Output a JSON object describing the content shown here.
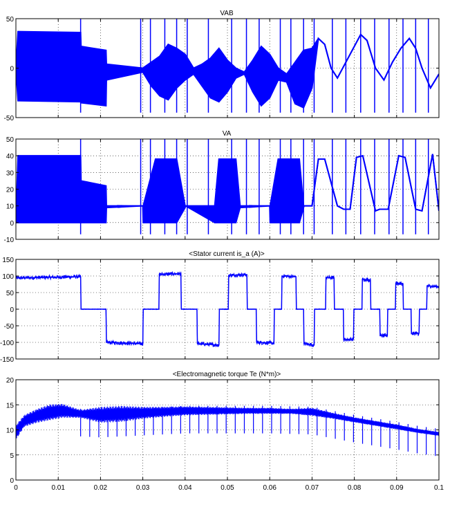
{
  "figure": {
    "line_color": "#0000ff",
    "grid": true,
    "grid_style": "dotted"
  },
  "chart_data": [
    {
      "type": "line",
      "title": "VAB",
      "xlabel": "",
      "ylabel": "",
      "xlim": [
        0,
        0.1
      ],
      "ylim": [
        -50,
        50
      ],
      "yticks": [
        -50,
        0,
        50
      ],
      "xticks": [
        0,
        0.01,
        0.02,
        0.03,
        0.04,
        0.05,
        0.06,
        0.07,
        0.08,
        0.09,
        0.1
      ],
      "show_xtick_labels": false,
      "series": [
        {
          "style": "pwm-chopped",
          "description_x": [
            0,
            0.0005,
            0.0153,
            0.0154,
            0.0213,
            0.0214,
            0.03,
            0.032,
            0.034,
            0.036,
            0.038,
            0.04,
            0.042,
            0.044,
            0.046,
            0.048,
            0.05,
            0.052,
            0.054,
            0.056,
            0.058,
            0.06,
            0.062,
            0.064,
            0.066,
            0.068,
            0.07,
            0.0715,
            0.073,
            0.0745,
            0.076,
            0.078,
            0.08,
            0.0815,
            0.083,
            0.085,
            0.087,
            0.089,
            0.091,
            0.093,
            0.0945,
            0.096,
            0.098,
            0.1
          ],
          "envelope_upper": [
            0,
            37,
            36,
            22,
            18,
            4,
            0,
            6,
            12,
            24,
            20,
            14,
            0,
            4,
            10,
            20,
            8,
            0,
            -4,
            8,
            22,
            14,
            0,
            -6,
            6,
            18,
            20,
            30,
            24,
            0,
            -10,
            6,
            22,
            34,
            28,
            0,
            -12,
            6,
            20,
            30,
            20,
            0,
            -20,
            -6
          ],
          "envelope_lower": [
            0,
            -33,
            -34,
            -35,
            -38,
            -12,
            -4,
            -18,
            -28,
            -32,
            -20,
            -12,
            -6,
            -18,
            -30,
            -34,
            -24,
            -10,
            -6,
            -24,
            -38,
            -30,
            -12,
            -14,
            -36,
            -40,
            -20,
            30,
            24,
            0,
            -10,
            6,
            22,
            34,
            28,
            0,
            -12,
            6,
            20,
            30,
            20,
            0,
            -20,
            -6
          ]
        }
      ]
    },
    {
      "type": "line",
      "title": "VA",
      "xlabel": "",
      "ylabel": "",
      "xlim": [
        0,
        0.1
      ],
      "ylim": [
        -10,
        50
      ],
      "yticks": [
        -10,
        0,
        10,
        20,
        30,
        40,
        50
      ],
      "xticks": [
        0,
        0.01,
        0.02,
        0.03,
        0.04,
        0.05,
        0.06,
        0.07,
        0.08,
        0.09,
        0.1
      ],
      "show_xtick_labels": false,
      "series": [
        {
          "style": "pwm-chopped",
          "description_x": [
            0,
            0.0005,
            0.0153,
            0.0154,
            0.0213,
            0.0214,
            0.03,
            0.0301,
            0.033,
            0.038,
            0.04,
            0.0401,
            0.047,
            0.048,
            0.052,
            0.053,
            0.06,
            0.0601,
            0.062,
            0.067,
            0.068,
            0.0681,
            0.07,
            0.0715,
            0.073,
            0.076,
            0.0775,
            0.079,
            0.0805,
            0.082,
            0.085,
            0.086,
            0.088,
            0.0905,
            0.092,
            0.0945,
            0.096,
            0.0985,
            0.1
          ],
          "envelope_upper": [
            0,
            40,
            40,
            25,
            22,
            10,
            10,
            10,
            38,
            38,
            10,
            10,
            10,
            38,
            38,
            10,
            10,
            10,
            38,
            38,
            10,
            10,
            10,
            38,
            38,
            10,
            8,
            8,
            39,
            40,
            7,
            8,
            8,
            40,
            39,
            8,
            7,
            41,
            7
          ],
          "envelope_lower": [
            0,
            0,
            0,
            0,
            0,
            9,
            10,
            0,
            0,
            0,
            9,
            10,
            0,
            0,
            0,
            9,
            10,
            0,
            0,
            0,
            9,
            10,
            10,
            38,
            38,
            10,
            8,
            8,
            39,
            40,
            7,
            8,
            8,
            40,
            39,
            8,
            7,
            41,
            7
          ]
        }
      ]
    },
    {
      "type": "line",
      "title": "<Stator current is_a (A)>",
      "xlabel": "",
      "ylabel": "",
      "xlim": [
        0,
        0.1
      ],
      "ylim": [
        -150,
        150
      ],
      "yticks": [
        -150,
        -100,
        -50,
        0,
        50,
        100,
        150
      ],
      "xticks": [
        0,
        0.01,
        0.02,
        0.03,
        0.04,
        0.05,
        0.06,
        0.07,
        0.08,
        0.09,
        0.1
      ],
      "show_xtick_labels": false,
      "series": [
        {
          "style": "square-steps",
          "x": [
            0,
            0.0001,
            0.0153,
            0.0154,
            0.0213,
            0.0214,
            0.03,
            0.0301,
            0.0338,
            0.0339,
            0.039,
            0.0391,
            0.0428,
            0.0429,
            0.048,
            0.0481,
            0.0502,
            0.0503,
            0.0546,
            0.0547,
            0.0568,
            0.0569,
            0.061,
            0.0611,
            0.0628,
            0.0629,
            0.0662,
            0.0663,
            0.068,
            0.0681,
            0.0705,
            0.0706,
            0.0732,
            0.0733,
            0.0752,
            0.0753,
            0.0774,
            0.0775,
            0.0798,
            0.0799,
            0.0818,
            0.0819,
            0.0838,
            0.0839,
            0.086,
            0.0861,
            0.0878,
            0.0879,
            0.0897,
            0.0898,
            0.0915,
            0.0916,
            0.0934,
            0.0935,
            0.0953,
            0.0954,
            0.0971,
            0.0972,
            0.1
          ],
          "y": [
            92,
            94,
            98,
            0,
            0,
            -100,
            -104,
            0,
            0,
            105,
            107,
            0,
            0,
            -104,
            -108,
            0,
            0,
            102,
            104,
            0,
            0,
            -100,
            -102,
            0,
            0,
            100,
            98,
            0,
            0,
            -104,
            -108,
            0,
            0,
            96,
            94,
            0,
            0,
            -92,
            -90,
            0,
            0,
            90,
            88,
            0,
            0,
            -80,
            -80,
            0,
            0,
            78,
            76,
            0,
            0,
            -74,
            -72,
            0,
            0,
            70,
            68
          ]
        }
      ]
    },
    {
      "type": "line",
      "title": "<Electromagnetic torque Te (N*m)>",
      "xlabel": "",
      "ylabel": "",
      "xlim": [
        0,
        0.1
      ],
      "ylim": [
        0,
        20
      ],
      "yticks": [
        0,
        5,
        10,
        15,
        20
      ],
      "xticks": [
        0,
        0.01,
        0.02,
        0.03,
        0.04,
        0.05,
        0.06,
        0.07,
        0.08,
        0.09,
        0.1
      ],
      "xtick_labels": [
        "0",
        "0.01",
        "0.02",
        "0.03",
        "0.04",
        "0.05",
        "0.06",
        "0.07",
        "0.08",
        "0.09",
        "0.1"
      ],
      "show_xtick_labels": true,
      "series": [
        {
          "style": "ripple-band",
          "x": [
            0,
            0.002,
            0.005,
            0.008,
            0.011,
            0.0153,
            0.02,
            0.025,
            0.03,
            0.035,
            0.04,
            0.045,
            0.05,
            0.055,
            0.06,
            0.065,
            0.07,
            0.075,
            0.08,
            0.085,
            0.09,
            0.095,
            0.1
          ],
          "mean": [
            9.5,
            11.8,
            12.8,
            13.5,
            13.8,
            13.2,
            13.0,
            13.2,
            13.4,
            13.6,
            13.8,
            13.8,
            13.8,
            13.8,
            13.8,
            13.7,
            13.6,
            12.8,
            12.0,
            11.3,
            10.6,
            9.8,
            9.2
          ],
          "ripple": [
            1.5,
            1.2,
            1.4,
            1.6,
            1.4,
            0.8,
            1.6,
            1.6,
            1.2,
            1.0,
            0.9,
            0.8,
            0.7,
            0.6,
            0.6,
            0.5,
            0.8,
            0.6,
            0.5,
            0.5,
            0.5,
            0.4,
            0.4
          ]
        }
      ]
    }
  ]
}
